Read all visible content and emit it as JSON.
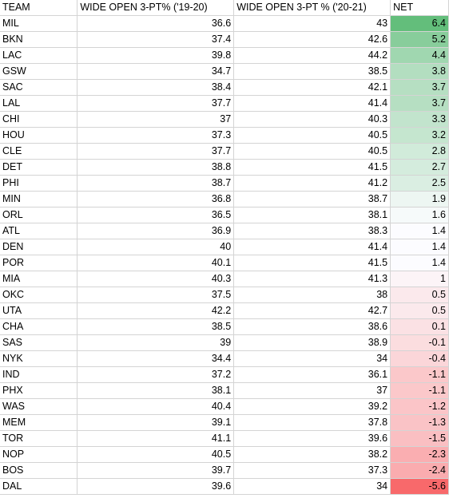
{
  "spreadsheet": {
    "headers": [
      "TEAM",
      "WIDE OPEN 3-PT% ('19-20)",
      "WIDE OPEN 3-PT % ('20-21)",
      "NET"
    ],
    "rows": [
      [
        "MIL",
        "36.6",
        "43",
        "6.4"
      ],
      [
        "BKN",
        "37.4",
        "42.6",
        "5.2"
      ],
      [
        "LAC",
        "39.8",
        "44.2",
        "4.4"
      ],
      [
        "GSW",
        "34.7",
        "38.5",
        "3.8"
      ],
      [
        "SAC",
        "38.4",
        "42.1",
        "3.7"
      ],
      [
        "LAL",
        "37.7",
        "41.4",
        "3.7"
      ],
      [
        "CHI",
        "37",
        "40.3",
        "3.3"
      ],
      [
        "HOU",
        "37.3",
        "40.5",
        "3.2"
      ],
      [
        "CLE",
        "37.7",
        "40.5",
        "2.8"
      ],
      [
        "DET",
        "38.8",
        "41.5",
        "2.7"
      ],
      [
        "PHI",
        "38.7",
        "41.2",
        "2.5"
      ],
      [
        "MIN",
        "36.8",
        "38.7",
        "1.9"
      ],
      [
        "ORL",
        "36.5",
        "38.1",
        "1.6"
      ],
      [
        "ATL",
        "36.9",
        "38.3",
        "1.4"
      ],
      [
        "DEN",
        "40",
        "41.4",
        "1.4"
      ],
      [
        "POR",
        "40.1",
        "41.5",
        "1.4"
      ],
      [
        "MIA",
        "40.3",
        "41.3",
        "1"
      ],
      [
        "OKC",
        "37.5",
        "38",
        "0.5"
      ],
      [
        "UTA",
        "42.2",
        "42.7",
        "0.5"
      ],
      [
        "CHA",
        "38.5",
        "38.6",
        "0.1"
      ],
      [
        "SAS",
        "39",
        "38.9",
        "-0.1"
      ],
      [
        "NYK",
        "34.4",
        "34",
        "-0.4"
      ],
      [
        "IND",
        "37.2",
        "36.1",
        "-1.1"
      ],
      [
        "PHX",
        "38.1",
        "37",
        "-1.1"
      ],
      [
        "WAS",
        "40.4",
        "39.2",
        "-1.2"
      ],
      [
        "MEM",
        "39.1",
        "37.8",
        "-1.3"
      ],
      [
        "TOR",
        "41.1",
        "39.6",
        "-1.5"
      ],
      [
        "NOP",
        "40.5",
        "38.2",
        "-2.3"
      ],
      [
        "BOS",
        "39.7",
        "37.3",
        "-2.4"
      ],
      [
        "DAL",
        "39.6",
        "34",
        "-5.6"
      ]
    ]
  },
  "colors": {
    "scale_max": "#63be7b",
    "scale_mid": "#fcfcff",
    "scale_min": "#f8696b",
    "gridline": "#d4d4d4"
  }
}
